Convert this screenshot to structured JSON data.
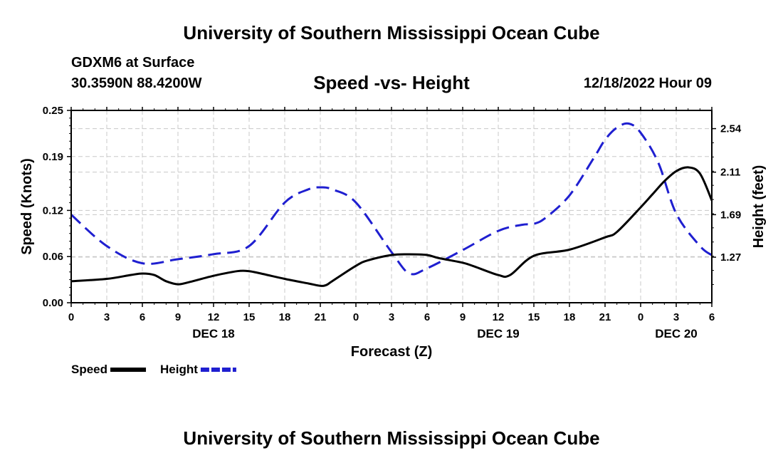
{
  "header": {
    "title": "University of Southern Mississippi Ocean Cube",
    "station": "GDXM6 at Surface",
    "coords": "30.3590N  88.4200W",
    "chart_title": "Speed -vs- Height",
    "datetime": "12/18/2022 Hour 09"
  },
  "footer": {
    "title": "University of Southern Mississippi Ocean Cube"
  },
  "chart_data": {
    "type": "line",
    "title": "Speed -vs- Height",
    "xlabel": "Forecast (Z)",
    "ylabel_left": "Speed (Knots)",
    "ylabel_right": "Height (feet)",
    "x_range": [
      0,
      54
    ],
    "x_ticks": [
      0,
      3,
      6,
      9,
      12,
      15,
      18,
      21,
      24,
      27,
      30,
      33,
      36,
      39,
      42,
      45,
      48,
      51,
      54
    ],
    "x_tick_labels": [
      "0",
      "3",
      "6",
      "9",
      "12",
      "15",
      "18",
      "21",
      "0",
      "3",
      "6",
      "9",
      "12",
      "15",
      "18",
      "21",
      "0",
      "3",
      "6"
    ],
    "date_labels": [
      {
        "x": 12,
        "label": "DEC 18"
      },
      {
        "x": 36,
        "label": "DEC 19"
      },
      {
        "x": 51,
        "label": "DEC 20"
      }
    ],
    "ylim_left": [
      0,
      0.25
    ],
    "y_ticks_left": [
      0,
      0.06,
      0.12,
      0.19,
      0.25
    ],
    "y_tick_labels_left": [
      "0.00",
      "0.06",
      "0.12",
      "0.19",
      "0.25"
    ],
    "ylim_right": [
      0.82,
      2.72
    ],
    "y_ticks_right": [
      1.27,
      1.69,
      2.11,
      2.54
    ],
    "y_tick_labels_right": [
      "1.27",
      "1.69",
      "2.11",
      "2.54"
    ],
    "grid": true,
    "series": [
      {
        "name": "Speed",
        "axis": "left",
        "color": "#000000",
        "dash": "solid",
        "x": [
          0,
          3,
          5,
          6,
          7,
          8,
          9,
          10,
          12,
          14,
          15,
          16,
          18,
          20,
          21,
          21.5,
          22,
          24,
          25,
          27,
          28.5,
          30,
          31,
          33,
          34,
          36,
          37,
          39,
          42,
          45,
          46,
          48,
          49,
          50,
          51,
          52,
          53,
          54
        ],
        "values": [
          0.028,
          0.031,
          0.036,
          0.038,
          0.036,
          0.028,
          0.024,
          0.027,
          0.035,
          0.041,
          0.041,
          0.038,
          0.031,
          0.025,
          0.022,
          0.023,
          0.028,
          0.048,
          0.055,
          0.062,
          0.063,
          0.062,
          0.058,
          0.052,
          0.047,
          0.036,
          0.036,
          0.061,
          0.069,
          0.085,
          0.092,
          0.124,
          0.141,
          0.158,
          0.171,
          0.176,
          0.168,
          0.133
        ]
      },
      {
        "name": "Height",
        "axis": "right",
        "color": "#1f1fd0",
        "dash": "dashed",
        "x": [
          0,
          3,
          6,
          9,
          12,
          15,
          18,
          20,
          21,
          22,
          24,
          27,
          28.5,
          30,
          33,
          36,
          38,
          39,
          40,
          42,
          44,
          45,
          46,
          47,
          48,
          49.5,
          51,
          53,
          54
        ],
        "values": [
          1.69,
          1.38,
          1.21,
          1.25,
          1.3,
          1.38,
          1.81,
          1.94,
          1.96,
          1.94,
          1.81,
          1.32,
          1.11,
          1.16,
          1.34,
          1.53,
          1.59,
          1.6,
          1.66,
          1.88,
          2.24,
          2.43,
          2.55,
          2.59,
          2.5,
          2.2,
          1.7,
          1.38,
          1.29
        ]
      }
    ],
    "legend": [
      {
        "label": "Speed",
        "color": "#000000",
        "dash": "solid"
      },
      {
        "label": "Height",
        "color": "#1f1fd0",
        "dash": "dashed"
      }
    ],
    "legend_position": "bottom-left"
  }
}
